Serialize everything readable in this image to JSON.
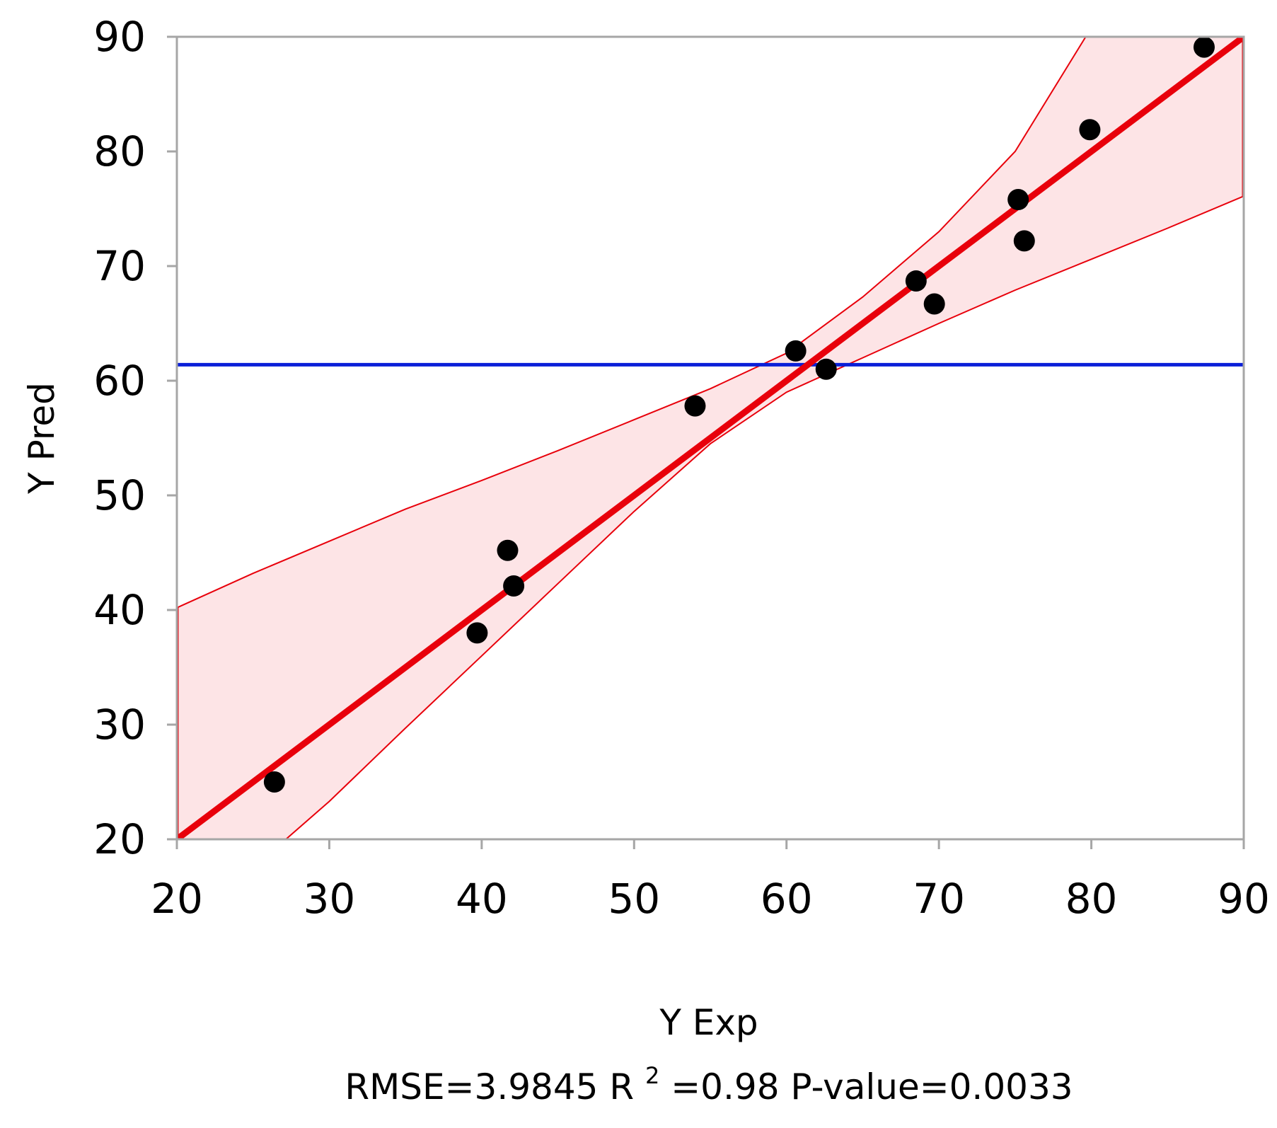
{
  "chart_data": {
    "type": "scatter",
    "xlabel": "Y Exp",
    "ylabel": "Y Pred",
    "xlim": [
      20,
      90
    ],
    "ylim": [
      20,
      90
    ],
    "x_ticks": [
      20,
      30,
      40,
      50,
      60,
      70,
      80,
      90
    ],
    "y_ticks": [
      20,
      30,
      40,
      50,
      60,
      70,
      80,
      90
    ],
    "grid": false,
    "points": [
      {
        "x": 26.4,
        "y": 25.0
      },
      {
        "x": 39.7,
        "y": 38.0
      },
      {
        "x": 41.7,
        "y": 45.2
      },
      {
        "x": 42.1,
        "y": 42.1
      },
      {
        "x": 54.0,
        "y": 57.8
      },
      {
        "x": 60.6,
        "y": 62.6
      },
      {
        "x": 62.6,
        "y": 61.0
      },
      {
        "x": 68.5,
        "y": 68.7
      },
      {
        "x": 69.7,
        "y": 66.7
      },
      {
        "x": 75.2,
        "y": 75.8
      },
      {
        "x": 75.6,
        "y": 72.2
      },
      {
        "x": 79.9,
        "y": 81.9
      },
      {
        "x": 87.4,
        "y": 89.1
      }
    ],
    "fit_line": {
      "x": [
        20,
        90
      ],
      "y": [
        20,
        90
      ],
      "color": "#e8000b"
    },
    "mean_line": {
      "y": 61.4,
      "color": "#0a1fd8"
    },
    "confidence_band": {
      "x": [
        20,
        25,
        30,
        35,
        40,
        45,
        50,
        55,
        60,
        65,
        70,
        75,
        80,
        85,
        90
      ],
      "lower": [
        12.5,
        17.5,
        23.3,
        29.7,
        36.0,
        42.3,
        48.6,
        54.5,
        59.0,
        62.0,
        65.0,
        67.9,
        70.6,
        73.3,
        76.1
      ],
      "upper": [
        40.2,
        43.2,
        46.0,
        48.8,
        51.3,
        53.9,
        56.6,
        59.3,
        62.4,
        67.3,
        73.0,
        80.0,
        90.8,
        97.5,
        104.0
      ],
      "color": "#e8000b",
      "fill": "#fde4e6"
    },
    "stats": {
      "rmse_text": "RMSE=3.9845 R",
      "r2_sup": "2",
      "rest_text": "=0.98  P-value=0.0033"
    }
  }
}
